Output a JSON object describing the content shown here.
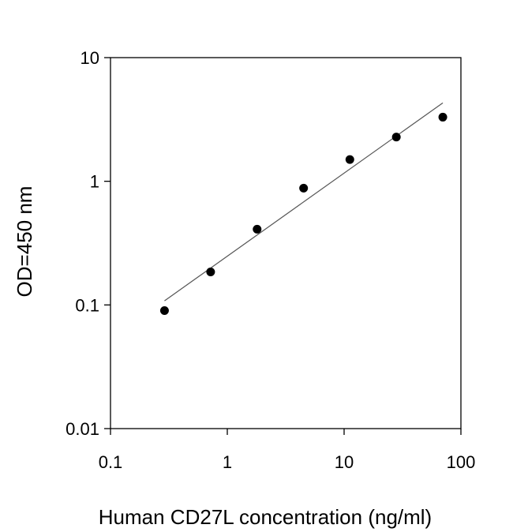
{
  "chart_data": {
    "type": "scatter",
    "title": "",
    "xlabel": "Human CD27L concentration (ng/ml)",
    "ylabel": "OD=450 nm",
    "x_scale": "log",
    "y_scale": "log",
    "xlim": [
      0.1,
      100
    ],
    "ylim": [
      0.01,
      10
    ],
    "x_ticks": [
      {
        "value": 0.1,
        "label": "0.1"
      },
      {
        "value": 1,
        "label": "1"
      },
      {
        "value": 10,
        "label": "10"
      },
      {
        "value": 100,
        "label": "100"
      }
    ],
    "y_ticks": [
      {
        "value": 0.01,
        "label": "0.01"
      },
      {
        "value": 0.1,
        "label": "0.1"
      },
      {
        "value": 1,
        "label": "1"
      },
      {
        "value": 10,
        "label": "10"
      }
    ],
    "grid": false,
    "legend": "none",
    "series": [
      {
        "points": [
          {
            "x": 0.29,
            "y": 0.09
          },
          {
            "x": 0.72,
            "y": 0.185
          },
          {
            "x": 1.8,
            "y": 0.41
          },
          {
            "x": 4.5,
            "y": 0.88
          },
          {
            "x": 11.2,
            "y": 1.5
          },
          {
            "x": 28,
            "y": 2.28
          },
          {
            "x": 70,
            "y": 3.3
          }
        ]
      }
    ],
    "fit_line": {
      "points": [
        {
          "x": 0.29,
          "y": 0.108
        },
        {
          "x": 70,
          "y": 4.3
        }
      ]
    },
    "colors": {
      "marker": "#000000",
      "line": "#555555",
      "axis": "#000000"
    }
  }
}
